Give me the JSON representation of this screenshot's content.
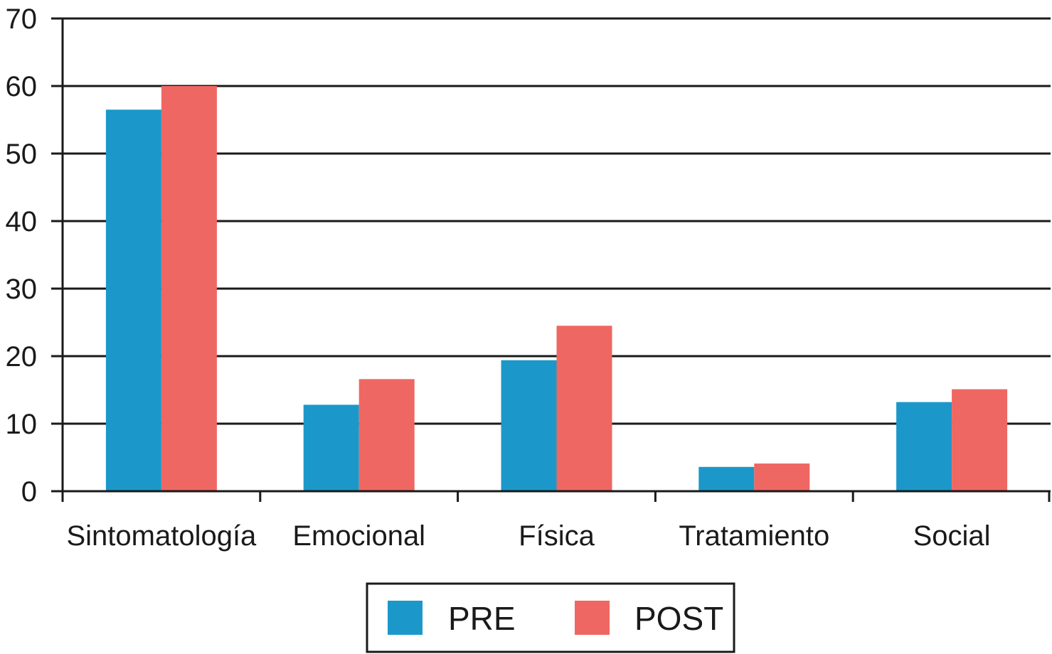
{
  "chart_data": {
    "type": "bar",
    "categories": [
      "Sintomatología",
      "Emocional",
      "Física",
      "Tratamiento",
      "Social"
    ],
    "series": [
      {
        "name": "PRE",
        "color": "#1b98c9",
        "values": [
          56.5,
          12.8,
          19.4,
          3.6,
          13.2
        ]
      },
      {
        "name": "POST",
        "color": "#ef6762",
        "values": [
          60.0,
          16.6,
          24.5,
          4.1,
          15.1
        ]
      }
    ],
    "ylim": [
      0,
      70
    ],
    "yticks": [
      0,
      10,
      20,
      30,
      40,
      50,
      60,
      70
    ],
    "grid": true,
    "legend_position": "bottom-center",
    "title": "",
    "xlabel": "",
    "ylabel": ""
  }
}
